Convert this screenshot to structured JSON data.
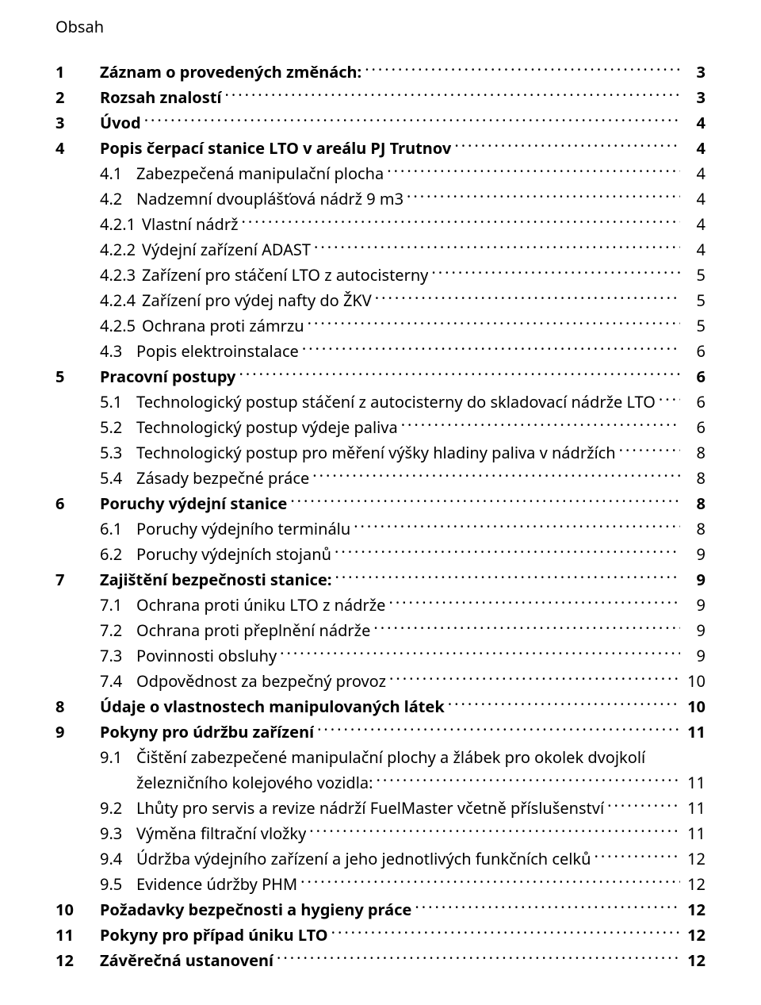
{
  "title": "Obsah",
  "entries": [
    {
      "level": 1,
      "num": "1",
      "text": "Záznam o provedených změnách:",
      "page": "3",
      "bold": true
    },
    {
      "level": 1,
      "num": "2",
      "text": "Rozsah znalostí",
      "page": "3",
      "bold": true
    },
    {
      "level": 1,
      "num": "3",
      "text": "Úvod",
      "page": "4",
      "bold": true
    },
    {
      "level": 1,
      "num": "4",
      "text": "Popis čerpací stanice LTO v areálu PJ Trutnov",
      "page": "4",
      "bold": true
    },
    {
      "level": 2,
      "num": "4.1",
      "text": "Zabezpečená manipulační plocha",
      "page": "4",
      "bold": false
    },
    {
      "level": 2,
      "num": "4.2",
      "text": "Nadzemní dvouplášťová nádrž 9 m3",
      "page": "4",
      "bold": false
    },
    {
      "level": 2,
      "num": "4.2.1",
      "text": "Vlastní nádrž",
      "page": "4",
      "bold": false
    },
    {
      "level": 2,
      "num": "4.2.2",
      "text": "Výdejní zařízení ADAST",
      "page": "4",
      "bold": false
    },
    {
      "level": 2,
      "num": "4.2.3",
      "text": "Zařízení pro stáčení LTO z autocisterny",
      "page": "5",
      "bold": false
    },
    {
      "level": 2,
      "num": "4.2.4",
      "text": "Zařízení pro výdej nafty do ŽKV",
      "page": "5",
      "bold": false
    },
    {
      "level": 2,
      "num": "4.2.5",
      "text": "Ochrana proti zámrzu",
      "page": "5",
      "bold": false
    },
    {
      "level": 2,
      "num": "4.3",
      "text": "Popis elektroinstalace",
      "page": "6",
      "bold": false
    },
    {
      "level": 1,
      "num": "5",
      "text": "Pracovní postupy",
      "page": "6",
      "bold": true
    },
    {
      "level": 2,
      "num": "5.1",
      "text": "Technologický postup stáčení z autocisterny do skladovací nádrže LTO",
      "page": "6",
      "bold": false
    },
    {
      "level": 2,
      "num": "5.2",
      "text": "Technologický postup výdeje paliva",
      "page": "6",
      "bold": false
    },
    {
      "level": 2,
      "num": "5.3",
      "text": "Technologický postup pro měření výšky hladiny paliva v nádržích",
      "page": "8",
      "bold": false
    },
    {
      "level": 2,
      "num": "5.4",
      "text": "Zásady bezpečné práce",
      "page": "8",
      "bold": false
    },
    {
      "level": 1,
      "num": "6",
      "text": "Poruchy výdejní stanice",
      "page": "8",
      "bold": true
    },
    {
      "level": 2,
      "num": "6.1",
      "text": "Poruchy výdejního terminálu",
      "page": "8",
      "bold": false
    },
    {
      "level": 2,
      "num": "6.2",
      "text": "Poruchy výdejních stojanů",
      "page": "9",
      "bold": false
    },
    {
      "level": 1,
      "num": "7",
      "text": "Zajištění bezpečnosti stanice:",
      "page": "9",
      "bold": true
    },
    {
      "level": 2,
      "num": "7.1",
      "text": "Ochrana proti úniku LTO z nádrže",
      "page": "9",
      "bold": false
    },
    {
      "level": 2,
      "num": "7.2",
      "text": "Ochrana proti přeplnění nádrže",
      "page": "9",
      "bold": false
    },
    {
      "level": 2,
      "num": "7.3",
      "text": "Povinnosti obsluhy",
      "page": "9",
      "bold": false
    },
    {
      "level": 2,
      "num": "7.4",
      "text": "Odpovědnost za bezpečný provoz",
      "page": "10",
      "bold": false
    },
    {
      "level": 1,
      "num": "8",
      "text": "Údaje o vlastnostech manipulovaných látek",
      "page": "10",
      "bold": true
    },
    {
      "level": 1,
      "num": "9",
      "text": "Pokyny pro údržbu zařízení",
      "page": "11",
      "bold": true
    },
    {
      "level": 2,
      "num": "9.1",
      "text": "Čištění zabezpečené manipulační plochy a žlábek pro okolek dvojkolí",
      "page": "",
      "bold": false,
      "nowrapPage": true
    },
    {
      "level": 0,
      "num": "",
      "text": "železničního kolejového vozidla:",
      "page": "11",
      "bold": false,
      "continuation": true
    },
    {
      "level": 2,
      "num": "9.2",
      "text": "Lhůty pro servis a revize nádrží FuelMaster včetně příslušenství",
      "page": "11",
      "bold": false
    },
    {
      "level": 2,
      "num": "9.3",
      "text": "Výměna filtrační vložky",
      "page": "11",
      "bold": false
    },
    {
      "level": 2,
      "num": "9.4",
      "text": "Údržba výdejního zařízení a jeho jednotlivých funkčních celků",
      "page": "12",
      "bold": false
    },
    {
      "level": 2,
      "num": "9.5",
      "text": "Evidence údržby PHM",
      "page": "12",
      "bold": false
    },
    {
      "level": 1,
      "num": "10",
      "text": "Požadavky bezpečnosti a hygieny práce",
      "page": "12",
      "bold": true
    },
    {
      "level": 1,
      "num": "11",
      "text": "Pokyny pro případ úniku LTO",
      "page": "12",
      "bold": true
    },
    {
      "level": 1,
      "num": "12",
      "text": "Závěrečná ustanovení",
      "page": "12",
      "bold": true
    }
  ]
}
